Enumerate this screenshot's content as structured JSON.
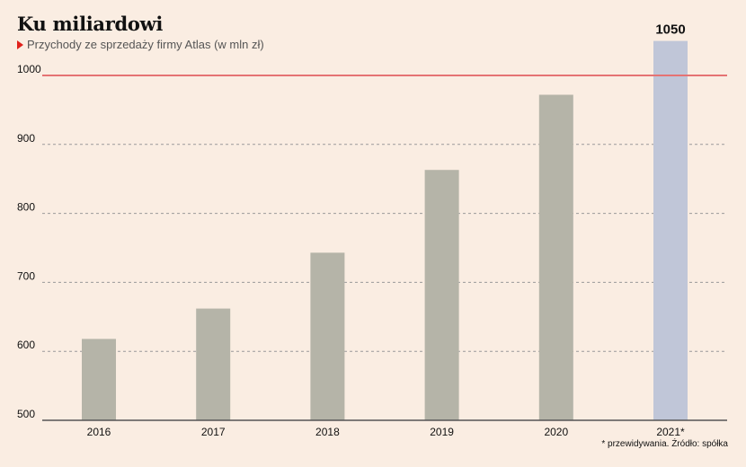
{
  "title": "Ku miliardowi",
  "subtitle": "Przychody ze sprzedaży firmy Atlas (w mln zł)",
  "footnote": "* przewidywania. Źródło: spółka",
  "colors": {
    "background": "#faede2",
    "bar": "#b5b4a8",
    "forecast_bar": "#c0c6d8",
    "reference_line": "#e57373",
    "grid": "#9a9a9a",
    "axis": "#555555",
    "subtitle_marker": "#e0211b"
  },
  "chart_data": {
    "type": "bar",
    "categories": [
      "2016",
      "2017",
      "2018",
      "2019",
      "2020",
      "2021*"
    ],
    "values": [
      618,
      662,
      743,
      863,
      972,
      1050
    ],
    "forecast_index": 5,
    "data_labels": [
      {
        "index": 5,
        "text": "1050"
      }
    ],
    "yticks": [
      500,
      600,
      700,
      800,
      900,
      1000
    ],
    "ylim": [
      500,
      1050
    ],
    "reference_line": 1000,
    "grid": "dashed horizontal",
    "xlabel": "",
    "ylabel": ""
  }
}
